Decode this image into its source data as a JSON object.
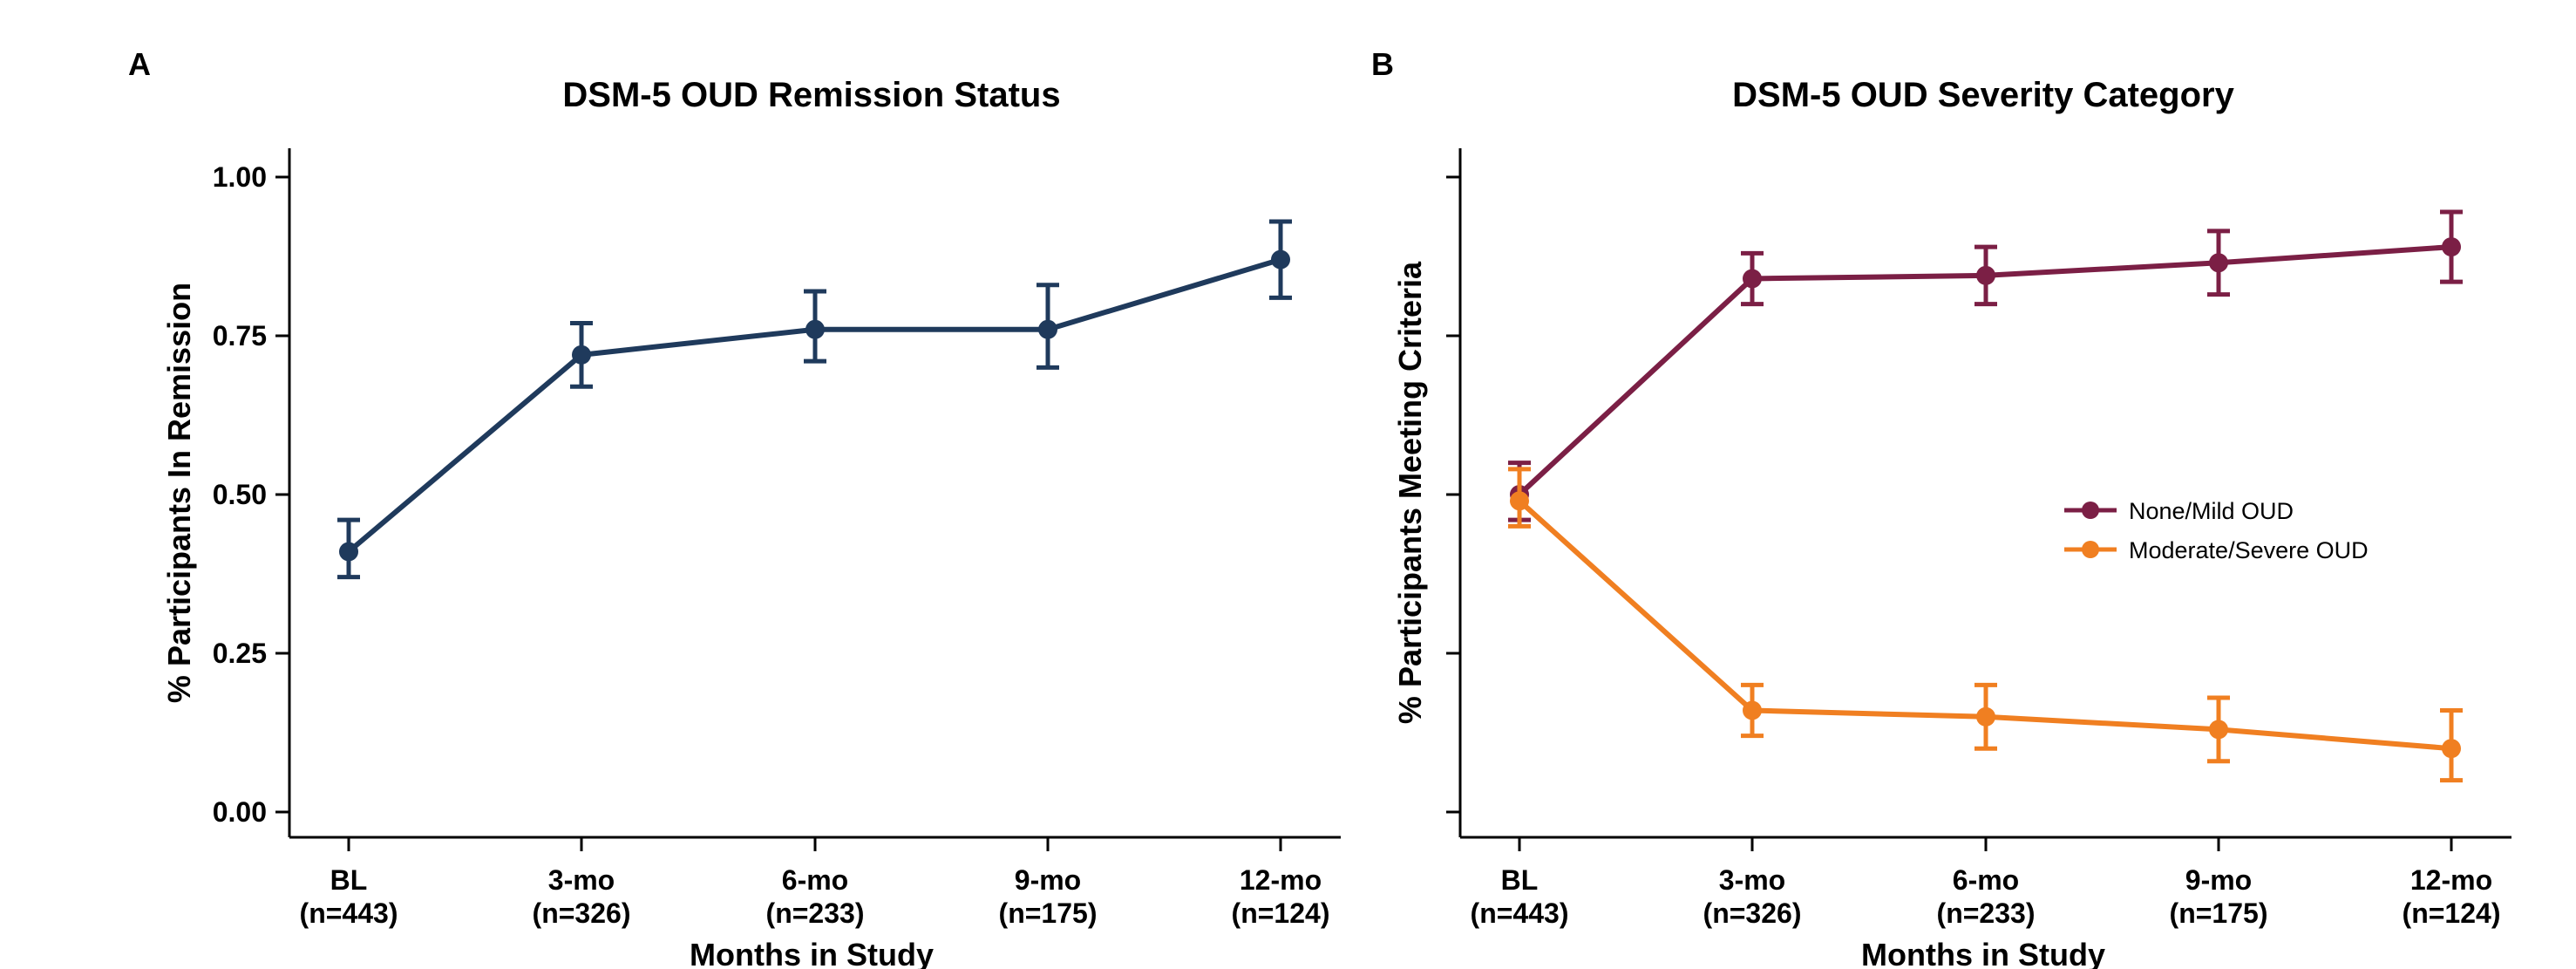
{
  "chart_data": [
    {
      "panel": "A",
      "type": "line",
      "title": "DSM-5 OUD Remission Status",
      "xlabel": "Months in Study",
      "ylabel": "% Participants In Remission",
      "categories": [
        "BL\n(n=443)",
        "3-mo\n(n=326)",
        "6-mo\n(n=233)",
        "9-mo\n(n=175)",
        "12-mo\n(n=124)"
      ],
      "ylim": [
        0,
        1
      ],
      "yticks": [
        0.0,
        0.25,
        0.5,
        0.75,
        1.0
      ],
      "ytick_labels": [
        "0.00",
        "0.25",
        "0.50",
        "0.75",
        "1.00"
      ],
      "grid": false,
      "legend": "none",
      "series": [
        {
          "color": "#1f3a5c",
          "values": [
            0.41,
            0.72,
            0.76,
            0.76,
            0.87
          ],
          "ci_low": [
            0.37,
            0.67,
            0.71,
            0.7,
            0.81
          ],
          "ci_high": [
            0.46,
            0.77,
            0.82,
            0.83,
            0.93
          ]
        }
      ]
    },
    {
      "panel": "B",
      "type": "line",
      "title": "DSM-5 OUD Severity Category",
      "xlabel": "Months in Study",
      "ylabel": "% Participants Meeting Criteria",
      "categories": [
        "BL\n(n=443)",
        "3-mo\n(n=326)",
        "6-mo\n(n=233)",
        "9-mo\n(n=175)",
        "12-mo\n(n=124)"
      ],
      "ylim": [
        0,
        1
      ],
      "yticks": [
        0.0,
        0.25,
        0.5,
        0.75,
        1.0
      ],
      "ytick_labels": [
        "",
        "",
        "",
        "",
        ""
      ],
      "grid": false,
      "legend": "center-right",
      "series": [
        {
          "name": "None/Mild OUD",
          "color": "#7b1f45",
          "values": [
            0.5,
            0.84,
            0.845,
            0.865,
            0.89
          ],
          "ci_low": [
            0.46,
            0.8,
            0.8,
            0.815,
            0.835
          ],
          "ci_high": [
            0.55,
            0.88,
            0.89,
            0.915,
            0.945
          ]
        },
        {
          "name": "Moderate/Severe OUD",
          "color": "#f07f21",
          "values": [
            0.49,
            0.16,
            0.15,
            0.13,
            0.1
          ],
          "ci_low": [
            0.45,
            0.12,
            0.1,
            0.08,
            0.05
          ],
          "ci_high": [
            0.54,
            0.2,
            0.2,
            0.18,
            0.16
          ]
        }
      ]
    }
  ]
}
